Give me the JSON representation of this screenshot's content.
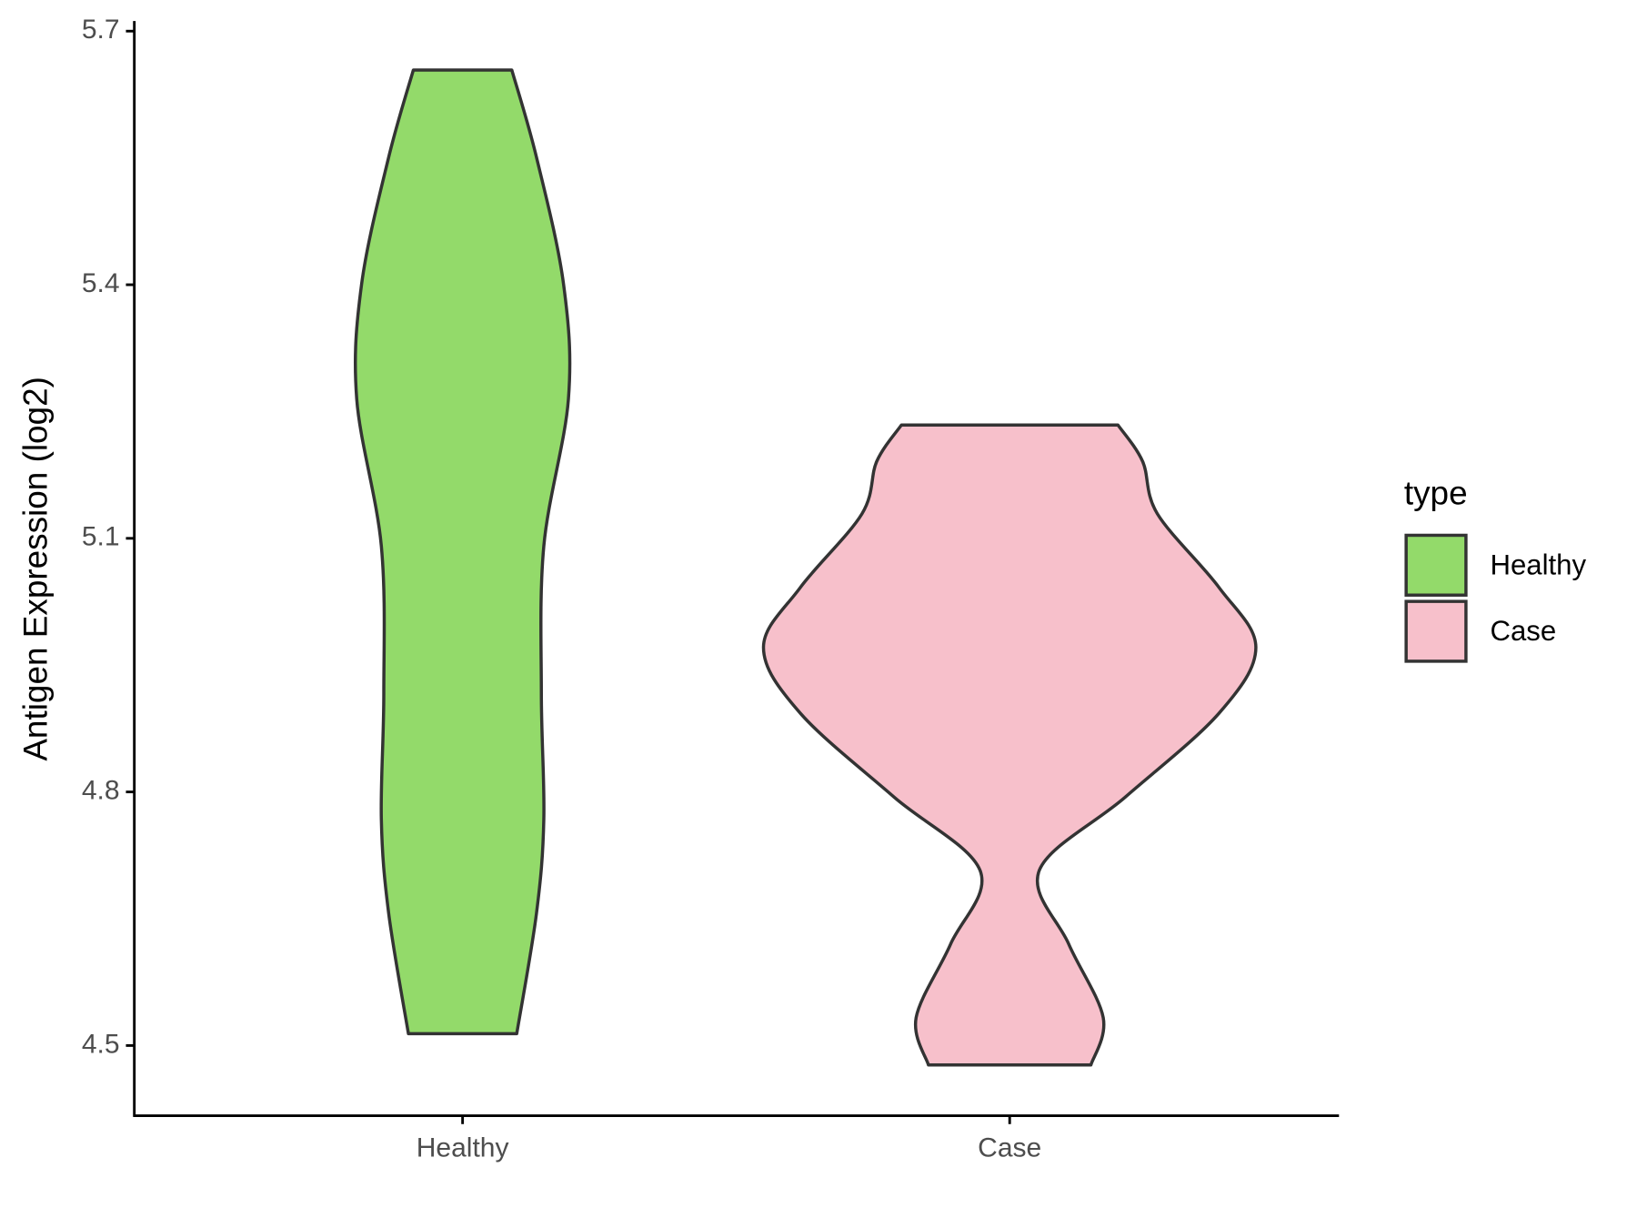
{
  "chart_data": {
    "type": "violin",
    "y_label": "Antigen Expression (log2)",
    "categories": [
      "Healthy",
      "Case"
    ],
    "legend_title": "type",
    "legend_position": "right",
    "ylim": [
      4.417,
      5.712
    ],
    "yticks": [
      4.5,
      4.8,
      5.1,
      5.4,
      5.7
    ],
    "series": [
      {
        "name": "Healthy",
        "color": "#93DA6A",
        "y": [
          5.654,
          5.551,
          5.401,
          5.265,
          5.091,
          4.917,
          4.768,
          4.656,
          4.514
        ],
        "density": [
          0.2,
          0.3,
          0.41,
          0.43,
          0.33,
          0.32,
          0.33,
          0.3,
          0.22
        ]
      },
      {
        "name": "Case",
        "color": "#F7C0CB",
        "y": [
          5.234,
          5.191,
          5.129,
          5.042,
          4.971,
          4.893,
          4.794,
          4.707,
          4.62,
          4.533,
          4.477
        ],
        "density": [
          0.44,
          0.54,
          0.6,
          0.85,
          1,
          0.85,
          0.47,
          0.12,
          0.24,
          0.38,
          0.33
        ]
      }
    ]
  }
}
